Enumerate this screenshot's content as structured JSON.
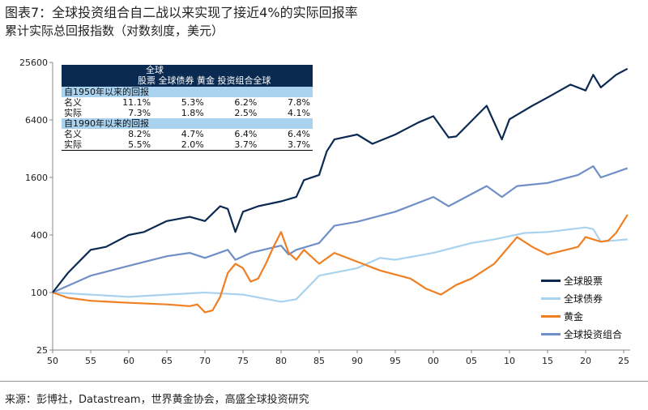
{
  "title": "图表7：全球投资组合自二战以来实现了接近4%的实际回报率",
  "subtitle": "累计实际总回报指数（对数刻度，美元）",
  "source": "来源：彭博社，Datastream，世界黄金协会，高盛全球投资研究",
  "table": {
    "header_line1": "全球",
    "header_line2": "股票 全球债券 黄金 投资组合全球",
    "sections": [
      {
        "label": "自1950年以来的回报",
        "rows": [
          {
            "name": "名义",
            "values": [
              "11.1%",
              "5.3%",
              "6.2%",
              "7.8%"
            ]
          },
          {
            "name": "实际",
            "values": [
              "7.3%",
              "1.8%",
              "2.5%",
              "4.1%"
            ]
          }
        ]
      },
      {
        "label": "自1990年以来的回报",
        "rows": [
          {
            "name": "名义",
            "values": [
              "8.2%",
              "4.7%",
              "6.4%",
              "6.4%"
            ]
          },
          {
            "name": "实际",
            "values": [
              "5.5%",
              "2.0%",
              "3.7%",
              "3.7%"
            ]
          }
        ]
      }
    ]
  },
  "chart_data": {
    "type": "line",
    "yscale": "log",
    "ylim": [
      25,
      25600
    ],
    "xlim": [
      1950,
      2025.5
    ],
    "yticks": [
      "25",
      "100",
      "400",
      "1600",
      "6400",
      "25600"
    ],
    "yticks_values": [
      25,
      100,
      400,
      1600,
      6400,
      25600
    ],
    "xticks": [
      "50",
      "55",
      "60",
      "65",
      "70",
      "75",
      "80",
      "85",
      "90",
      "95",
      "00",
      "05",
      "10",
      "15",
      "20",
      "25"
    ],
    "legend_position": "bottom-right",
    "series": [
      {
        "name": "全球股票",
        "color": "#0b2a52",
        "points": [
          [
            1950,
            100
          ],
          [
            1952,
            160
          ],
          [
            1955,
            280
          ],
          [
            1957,
            300
          ],
          [
            1960,
            400
          ],
          [
            1962,
            430
          ],
          [
            1965,
            560
          ],
          [
            1968,
            620
          ],
          [
            1970,
            560
          ],
          [
            1972,
            800
          ],
          [
            1973,
            750
          ],
          [
            1974,
            430
          ],
          [
            1975,
            700
          ],
          [
            1977,
            800
          ],
          [
            1980,
            900
          ],
          [
            1982,
            1000
          ],
          [
            1983,
            1500
          ],
          [
            1985,
            1700
          ],
          [
            1986,
            3000
          ],
          [
            1987,
            4000
          ],
          [
            1990,
            4500
          ],
          [
            1992,
            3600
          ],
          [
            1995,
            4500
          ],
          [
            1998,
            6000
          ],
          [
            2000,
            7000
          ],
          [
            2002,
            4200
          ],
          [
            2003,
            4300
          ],
          [
            2007,
            9000
          ],
          [
            2009,
            4000
          ],
          [
            2010,
            6500
          ],
          [
            2013,
            9000
          ],
          [
            2015,
            11000
          ],
          [
            2018,
            15000
          ],
          [
            2020,
            13000
          ],
          [
            2021,
            19000
          ],
          [
            2022,
            14000
          ],
          [
            2024,
            19000
          ],
          [
            2025.5,
            22000
          ]
        ]
      },
      {
        "name": "全球债券",
        "color": "#a9d2ef",
        "points": [
          [
            1950,
            100
          ],
          [
            1955,
            95
          ],
          [
            1960,
            90
          ],
          [
            1965,
            95
          ],
          [
            1970,
            100
          ],
          [
            1975,
            95
          ],
          [
            1980,
            80
          ],
          [
            1982,
            85
          ],
          [
            1985,
            150
          ],
          [
            1990,
            180
          ],
          [
            1993,
            230
          ],
          [
            1995,
            220
          ],
          [
            2000,
            260
          ],
          [
            2005,
            330
          ],
          [
            2008,
            360
          ],
          [
            2012,
            420
          ],
          [
            2015,
            430
          ],
          [
            2020,
            480
          ],
          [
            2021,
            460
          ],
          [
            2022,
            340
          ],
          [
            2025.5,
            360
          ]
        ]
      },
      {
        "name": "黄金",
        "color": "#f07f22",
        "points": [
          [
            1950,
            100
          ],
          [
            1952,
            88
          ],
          [
            1955,
            82
          ],
          [
            1960,
            78
          ],
          [
            1965,
            75
          ],
          [
            1968,
            72
          ],
          [
            1969,
            75
          ],
          [
            1970,
            62
          ],
          [
            1971,
            65
          ],
          [
            1972,
            90
          ],
          [
            1973,
            160
          ],
          [
            1974,
            200
          ],
          [
            1975,
            180
          ],
          [
            1976,
            130
          ],
          [
            1977,
            140
          ],
          [
            1978,
            200
          ],
          [
            1979,
            300
          ],
          [
            1980,
            430
          ],
          [
            1981,
            260
          ],
          [
            1982,
            220
          ],
          [
            1983,
            280
          ],
          [
            1985,
            200
          ],
          [
            1987,
            260
          ],
          [
            1990,
            210
          ],
          [
            1993,
            170
          ],
          [
            1997,
            140
          ],
          [
            1999,
            110
          ],
          [
            2001,
            95
          ],
          [
            2003,
            120
          ],
          [
            2005,
            140
          ],
          [
            2008,
            200
          ],
          [
            2011,
            380
          ],
          [
            2013,
            300
          ],
          [
            2015,
            250
          ],
          [
            2019,
            300
          ],
          [
            2020,
            380
          ],
          [
            2022,
            340
          ],
          [
            2023,
            350
          ],
          [
            2024,
            420
          ],
          [
            2025.5,
            650
          ]
        ]
      },
      {
        "name": "全球投资组合",
        "color": "#6f8fc6",
        "points": [
          [
            1950,
            100
          ],
          [
            1955,
            150
          ],
          [
            1960,
            190
          ],
          [
            1965,
            240
          ],
          [
            1968,
            260
          ],
          [
            1970,
            230
          ],
          [
            1973,
            280
          ],
          [
            1974,
            220
          ],
          [
            1976,
            260
          ],
          [
            1980,
            310
          ],
          [
            1981,
            250
          ],
          [
            1982,
            280
          ],
          [
            1985,
            330
          ],
          [
            1987,
            500
          ],
          [
            1990,
            550
          ],
          [
            1995,
            700
          ],
          [
            2000,
            1000
          ],
          [
            2002,
            800
          ],
          [
            2007,
            1300
          ],
          [
            2009,
            1000
          ],
          [
            2011,
            1300
          ],
          [
            2015,
            1400
          ],
          [
            2019,
            1700
          ],
          [
            2021,
            2100
          ],
          [
            2022,
            1600
          ],
          [
            2025.5,
            2000
          ]
        ]
      }
    ]
  }
}
